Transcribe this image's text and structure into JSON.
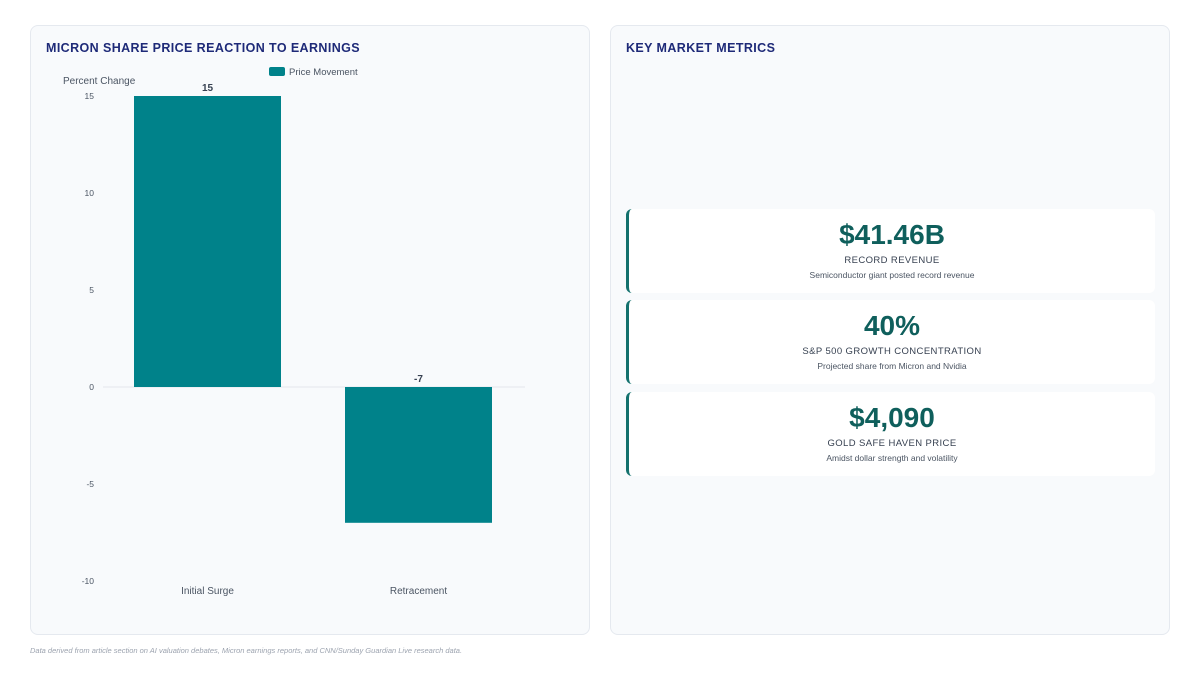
{
  "chart_panel": {
    "title": "MICRON SHARE PRICE REACTION TO EARNINGS"
  },
  "chart_data": {
    "type": "bar",
    "categories": [
      "Initial Surge",
      "Retracement"
    ],
    "series": [
      {
        "name": "Price Movement",
        "values": [
          15,
          -7
        ],
        "color": "#00828a"
      }
    ],
    "ylabel": "Percent Change",
    "ylim": [
      -10,
      15
    ],
    "yticks": [
      15,
      10,
      5,
      0,
      -5,
      -10
    ],
    "data_labels": [
      "15",
      "-7"
    ],
    "legend_position": "top-center",
    "grid": false
  },
  "metrics_panel": {
    "title": "KEY MARKET METRICS",
    "accent_color": "#13716d",
    "cards": [
      {
        "value": "$41.46B",
        "label": "RECORD REVENUE",
        "desc": "Semiconductor giant posted record revenue"
      },
      {
        "value": "40%",
        "label": "S&P 500 GROWTH CONCENTRATION",
        "desc": "Projected share from Micron and Nvidia"
      },
      {
        "value": "$4,090",
        "label": "GOLD SAFE HAVEN PRICE",
        "desc": "Amidst dollar strength and volatility"
      }
    ]
  },
  "footnote": "Data derived from article section on AI valuation debates, Micron earnings reports, and CNN/Sunday Guardian Live research data."
}
